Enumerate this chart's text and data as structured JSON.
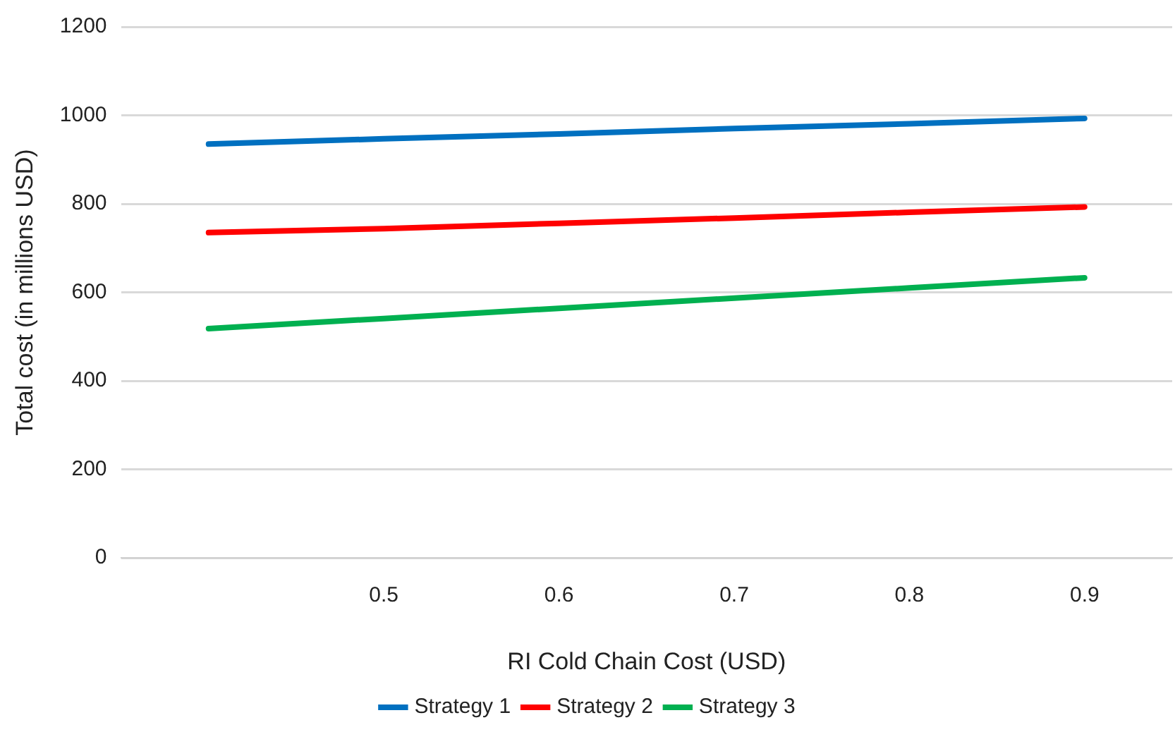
{
  "chart_data": {
    "type": "line",
    "xlabel": "RI Cold Chain Cost (USD)",
    "ylabel": "Total cost (in millions USD)",
    "categories": [
      null,
      "0.5",
      "0.6",
      "0.7",
      "0.8",
      "0.9"
    ],
    "series": [
      {
        "name": "Strategy 1",
        "color": "#0070c0",
        "values": [
          935,
          947,
          958,
          970,
          981,
          993
        ]
      },
      {
        "name": "Strategy 2",
        "color": "#ff0000",
        "values": [
          735,
          744,
          756,
          768,
          781,
          793
        ]
      },
      {
        "name": "Strategy 3",
        "color": "#00b050",
        "values": [
          518,
          541,
          564,
          587,
          610,
          633
        ]
      }
    ],
    "ylim": [
      0,
      1200
    ],
    "yticks": [
      0,
      200,
      400,
      600,
      800,
      1000,
      1200
    ],
    "grid": "y",
    "legend": "bottom",
    "marker": "none",
    "line_style": "solid"
  }
}
